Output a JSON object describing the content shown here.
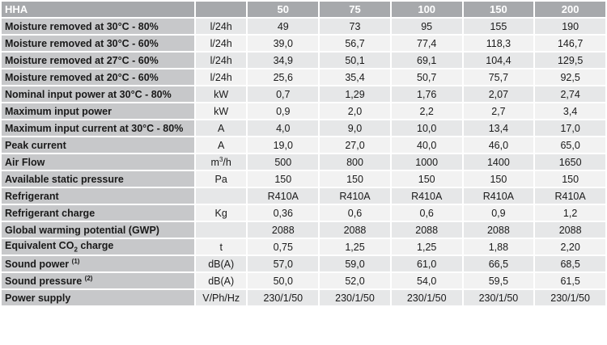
{
  "table": {
    "corner_label": "HHA",
    "models": [
      "50",
      "75",
      "100",
      "150",
      "200"
    ],
    "rows": [
      {
        "label": "Moisture removed at 30°C - 80%",
        "unit": "l/24h",
        "values": [
          "49",
          "73",
          "95",
          "155",
          "190"
        ]
      },
      {
        "label": "Moisture removed at 30°C - 60%",
        "unit": "l/24h",
        "values": [
          "39,0",
          "56,7",
          "77,4",
          "118,3",
          "146,7"
        ]
      },
      {
        "label": "Moisture removed at 27°C - 60%",
        "unit": "l/24h",
        "values": [
          "34,9",
          "50,1",
          "69,1",
          "104,4",
          "129,5"
        ]
      },
      {
        "label": "Moisture removed at 20°C - 60%",
        "unit": "l/24h",
        "values": [
          "25,6",
          "35,4",
          "50,7",
          "75,7",
          "92,5"
        ]
      },
      {
        "label": "Nominal input power at 30°C - 80%",
        "unit": "kW",
        "values": [
          "0,7",
          "1,29",
          "1,76",
          "2,07",
          "2,74"
        ]
      },
      {
        "label": "Maximum input power",
        "unit": "kW",
        "values": [
          "0,9",
          "2,0",
          "2,2",
          "2,7",
          "3,4"
        ]
      },
      {
        "label": "Maximum input current at 30°C - 80%",
        "unit": "A",
        "values": [
          "4,0",
          "9,0",
          "10,0",
          "13,4",
          "17,0"
        ]
      },
      {
        "label": "Peak current",
        "unit": "A",
        "values": [
          "19,0",
          "27,0",
          "40,0",
          "46,0",
          "65,0"
        ]
      },
      {
        "label": "Air Flow",
        "unit_main": "m",
        "unit_sup": "3",
        "unit_tail": "/h",
        "values": [
          "500",
          "800",
          "1000",
          "1400",
          "1650"
        ]
      },
      {
        "label": "Available static pressure",
        "unit": "Pa",
        "values": [
          "150",
          "150",
          "150",
          "150",
          "150"
        ]
      },
      {
        "label": "Refrigerant",
        "unit": "",
        "values": [
          "R410A",
          "R410A",
          "R410A",
          "R410A",
          "R410A"
        ]
      },
      {
        "label": "Refrigerant charge",
        "unit": "Kg",
        "values": [
          "0,36",
          "0,6",
          "0,6",
          "0,9",
          "1,2"
        ]
      },
      {
        "label": "Global warming potential (GWP)",
        "unit": "",
        "values": [
          "2088",
          "2088",
          "2088",
          "2088",
          "2088"
        ]
      },
      {
        "label_main": "Equivalent CO",
        "label_sub": "2",
        "label_tail": " charge",
        "unit": "t",
        "values": [
          "0,75",
          "1,25",
          "1,25",
          "1,88",
          "2,20"
        ]
      },
      {
        "label": "Sound power",
        "label_note": "(1)",
        "unit": "dB(A)",
        "values": [
          "57,0",
          "59,0",
          "61,0",
          "66,5",
          "68,5"
        ]
      },
      {
        "label": "Sound pressure",
        "label_note": "(2)",
        "unit": "dB(A)",
        "values": [
          "50,0",
          "52,0",
          "54,0",
          "59,5",
          "61,5"
        ]
      },
      {
        "label": "Power supply",
        "unit": "V/Ph/Hz",
        "values": [
          "230/1/50",
          "230/1/50",
          "230/1/50",
          "230/1/50",
          "230/1/50"
        ]
      }
    ]
  },
  "colors": {
    "header_bg": "#a7a9ac",
    "label_bg": "#c7c8ca",
    "cell_bg_odd": "#e6e7e8",
    "cell_bg_even": "#f2f2f2"
  }
}
